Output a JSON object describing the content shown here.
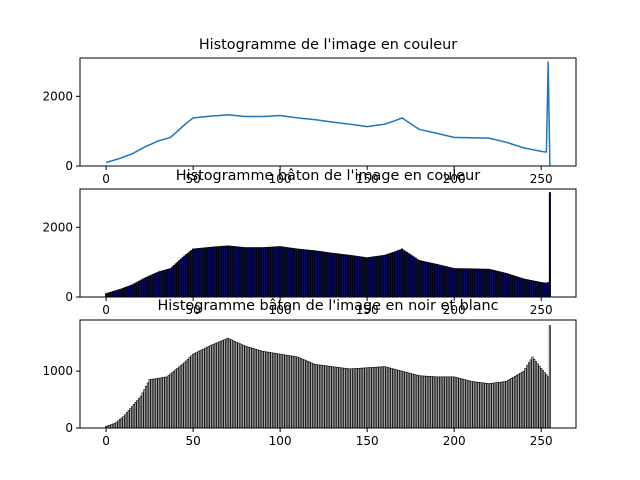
{
  "chart_data": [
    {
      "type": "line",
      "title": "Histogramme de l'image en couleur",
      "xlabel": "",
      "ylabel": "",
      "xlim": [
        -15,
        270
      ],
      "ylim": [
        0,
        3100
      ],
      "xticks": [
        0,
        50,
        100,
        150,
        200,
        250
      ],
      "yticks": [
        0,
        2000
      ],
      "grid": false,
      "color": "#1f77b4",
      "anchors": [
        [
          0,
          100
        ],
        [
          8,
          220
        ],
        [
          15,
          350
        ],
        [
          22,
          540
        ],
        [
          30,
          720
        ],
        [
          37,
          820
        ],
        [
          45,
          1180
        ],
        [
          50,
          1380
        ],
        [
          60,
          1430
        ],
        [
          70,
          1470
        ],
        [
          80,
          1420
        ],
        [
          90,
          1420
        ],
        [
          100,
          1450
        ],
        [
          110,
          1380
        ],
        [
          120,
          1330
        ],
        [
          130,
          1260
        ],
        [
          140,
          1200
        ],
        [
          150,
          1130
        ],
        [
          160,
          1200
        ],
        [
          166,
          1300
        ],
        [
          170,
          1380
        ],
        [
          180,
          1050
        ],
        [
          190,
          940
        ],
        [
          200,
          820
        ],
        [
          210,
          810
        ],
        [
          220,
          800
        ],
        [
          230,
          680
        ],
        [
          240,
          520
        ],
        [
          250,
          420
        ],
        [
          253,
          400
        ],
        [
          254,
          2980
        ],
        [
          255,
          0
        ]
      ]
    },
    {
      "type": "bar",
      "title": "Histogramme bâton de l'image en couleur",
      "xlabel": "",
      "ylabel": "",
      "xlim": [
        -15,
        270
      ],
      "ylim": [
        0,
        3100
      ],
      "xticks": [
        0,
        50,
        100,
        150,
        200,
        250
      ],
      "yticks": [
        0,
        2000
      ],
      "grid": false,
      "fill_color": "#0a0a6e",
      "edge_color": "#000000",
      "anchors": [
        [
          0,
          100
        ],
        [
          8,
          220
        ],
        [
          15,
          350
        ],
        [
          22,
          540
        ],
        [
          30,
          720
        ],
        [
          37,
          820
        ],
        [
          45,
          1180
        ],
        [
          50,
          1380
        ],
        [
          60,
          1430
        ],
        [
          70,
          1470
        ],
        [
          80,
          1420
        ],
        [
          90,
          1420
        ],
        [
          100,
          1450
        ],
        [
          110,
          1380
        ],
        [
          120,
          1330
        ],
        [
          130,
          1260
        ],
        [
          140,
          1200
        ],
        [
          150,
          1130
        ],
        [
          160,
          1200
        ],
        [
          166,
          1300
        ],
        [
          170,
          1380
        ],
        [
          180,
          1050
        ],
        [
          190,
          940
        ],
        [
          200,
          820
        ],
        [
          210,
          810
        ],
        [
          220,
          800
        ],
        [
          230,
          680
        ],
        [
          240,
          520
        ],
        [
          250,
          420
        ],
        [
          253,
          400
        ],
        [
          254,
          420
        ],
        [
          255,
          3000
        ]
      ]
    },
    {
      "type": "bar",
      "title": "Histogramme bâton de l'image en noir et blanc",
      "xlabel": "",
      "ylabel": "",
      "xlim": [
        -15,
        270
      ],
      "ylim": [
        0,
        1900
      ],
      "xticks": [
        0,
        50,
        100,
        150,
        200,
        250
      ],
      "yticks": [
        0,
        1000
      ],
      "grid": false,
      "fill_color": "#bdbdbd",
      "edge_color": "#000000",
      "anchors": [
        [
          0,
          30
        ],
        [
          5,
          80
        ],
        [
          10,
          200
        ],
        [
          15,
          380
        ],
        [
          20,
          560
        ],
        [
          25,
          850
        ],
        [
          35,
          900
        ],
        [
          45,
          1150
        ],
        [
          50,
          1300
        ],
        [
          60,
          1450
        ],
        [
          70,
          1580
        ],
        [
          80,
          1440
        ],
        [
          90,
          1350
        ],
        [
          100,
          1300
        ],
        [
          110,
          1250
        ],
        [
          120,
          1120
        ],
        [
          130,
          1080
        ],
        [
          140,
          1040
        ],
        [
          150,
          1060
        ],
        [
          160,
          1080
        ],
        [
          170,
          1000
        ],
        [
          180,
          920
        ],
        [
          190,
          900
        ],
        [
          200,
          900
        ],
        [
          210,
          820
        ],
        [
          220,
          780
        ],
        [
          230,
          820
        ],
        [
          240,
          1000
        ],
        [
          245,
          1250
        ],
        [
          250,
          1050
        ],
        [
          254,
          900
        ],
        [
          255,
          1800
        ]
      ]
    }
  ]
}
